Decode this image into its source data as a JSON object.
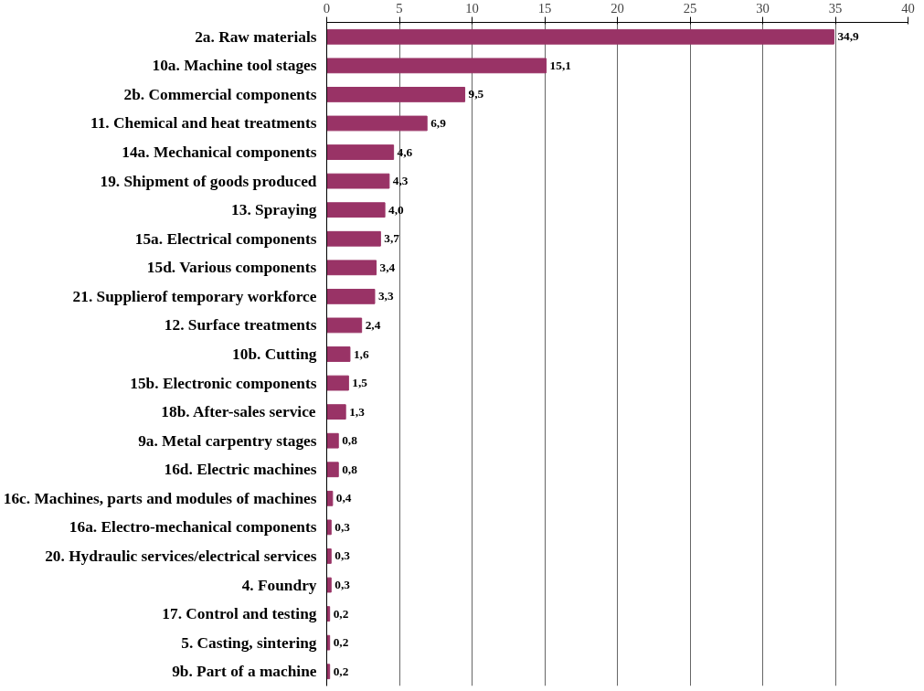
{
  "chart_data": {
    "type": "bar",
    "orientation": "horizontal",
    "categories": [
      "2a. Raw materials",
      "10a. Machine tool stages",
      "2b. Commercial components",
      "11. Chemical and heat treatments",
      "14a. Mechanical components",
      "19. Shipment of goods produced",
      "13. Spraying",
      "15a. Electrical components",
      "15d. Various components",
      "21. Supplierof temporary workforce",
      "12. Surface treatments",
      "10b. Cutting",
      "15b. Electronic components",
      "18b. After-sales service",
      "9a. Metal carpentry stages",
      "16d. Electric machines",
      "16c. Machines, parts and modules of machines",
      "16a. Electro-mechanical components",
      "20. Hydraulic services/electrical services",
      "4. Foundry",
      "17. Control and testing",
      "5. Casting, sintering",
      "9b. Part of a machine"
    ],
    "values": [
      34.9,
      15.1,
      9.5,
      6.9,
      4.6,
      4.3,
      4.0,
      3.7,
      3.4,
      3.3,
      2.4,
      1.6,
      1.5,
      1.3,
      0.8,
      0.8,
      0.4,
      0.3,
      0.3,
      0.3,
      0.2,
      0.2,
      0.2
    ],
    "value_labels": [
      "34,9",
      "15,1",
      "9,5",
      "6,9",
      "4,6",
      "4,3",
      "4,0",
      "3,7",
      "3,4",
      "3,3",
      "2,4",
      "1,6",
      "1,5",
      "1,3",
      "0,8",
      "0,8",
      "0,4",
      "0,3",
      "0,3",
      "0,3",
      "0,2",
      "0,2",
      "0,2"
    ],
    "color": "#993366",
    "xlim": [
      0,
      40
    ],
    "xticks": [
      0,
      5,
      10,
      15,
      20,
      25,
      30,
      35,
      40
    ],
    "grid": "x"
  }
}
